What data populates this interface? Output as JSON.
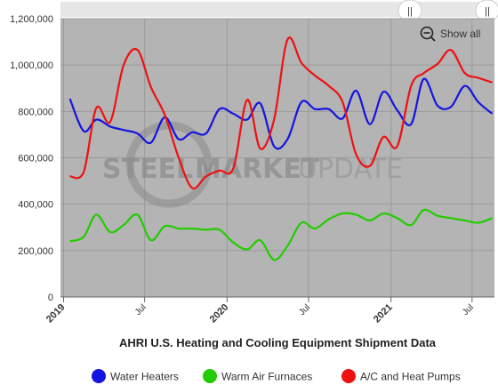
{
  "chart_data": {
    "type": "line",
    "title": "AHRI U.S. Heating and Cooling Equipment Shipment Data",
    "xlabel": "",
    "ylabel": "",
    "ylim": [
      0,
      1200000
    ],
    "yticks": [
      0,
      200000,
      400000,
      600000,
      800000,
      1000000,
      1200000
    ],
    "ytick_labels": [
      "0",
      "200,000",
      "400,000",
      "600,000",
      "800,000",
      "1,000,000",
      "1,200,000"
    ],
    "xlim": [
      "2018-12-25",
      "2021-08-20"
    ],
    "xticks": [
      {
        "date": "2019-01-01",
        "label": "2019",
        "major": true
      },
      {
        "date": "2019-07-01",
        "label": "Jul",
        "major": false
      },
      {
        "date": "2020-01-01",
        "label": "2020",
        "major": true
      },
      {
        "date": "2020-07-01",
        "label": "Jul",
        "major": false
      },
      {
        "date": "2021-01-01",
        "label": "2021",
        "major": true
      },
      {
        "date": "2021-07-01",
        "label": "Jul",
        "major": false
      }
    ],
    "grid": true,
    "legend": "bottom",
    "x": [
      "2019-01",
      "2019-02",
      "2019-03",
      "2019-04",
      "2019-05",
      "2019-06",
      "2019-07",
      "2019-08",
      "2019-09",
      "2019-10",
      "2019-11",
      "2019-12",
      "2020-01",
      "2020-02",
      "2020-03",
      "2020-04",
      "2020-05",
      "2020-06",
      "2020-07",
      "2020-08",
      "2020-09",
      "2020-10",
      "2020-11",
      "2020-12",
      "2021-01",
      "2021-02",
      "2021-03",
      "2021-04",
      "2021-05",
      "2021-06",
      "2021-07",
      "2021-08"
    ],
    "series": [
      {
        "name": "Water Heaters",
        "color": "#1515e0",
        "values": [
          855000,
          715000,
          765000,
          735000,
          720000,
          705000,
          665000,
          775000,
          680000,
          710000,
          705000,
          810000,
          790000,
          765000,
          835000,
          650000,
          680000,
          840000,
          810000,
          810000,
          770000,
          890000,
          745000,
          885000,
          805000,
          745000,
          940000,
          825000,
          820000,
          910000,
          840000,
          790000
        ]
      },
      {
        "name": "Warm Air Furnaces",
        "color": "#22cc00",
        "values": [
          240000,
          260000,
          355000,
          280000,
          310000,
          355000,
          245000,
          305000,
          295000,
          295000,
          290000,
          290000,
          235000,
          205000,
          245000,
          160000,
          220000,
          320000,
          295000,
          335000,
          360000,
          355000,
          330000,
          360000,
          340000,
          310000,
          375000,
          350000,
          340000,
          330000,
          320000,
          340000
        ]
      },
      {
        "name": "A/C and Heat Pumps",
        "color": "#ee1111",
        "values": [
          520000,
          540000,
          815000,
          755000,
          1000000,
          1065000,
          905000,
          785000,
          600000,
          470000,
          520000,
          545000,
          555000,
          850000,
          640000,
          765000,
          1110000,
          1010000,
          955000,
          910000,
          840000,
          615000,
          565000,
          690000,
          650000,
          910000,
          965000,
          1005000,
          1065000,
          965000,
          945000,
          925000
        ]
      }
    ]
  },
  "controls": {
    "show_all_label": "Show all"
  },
  "watermark": {
    "word1": "STEEL",
    "word2": "MARKET",
    "word3": "UPDATE"
  },
  "colors": {
    "plot_background": "#b4b4b4",
    "gridline": "#9a9a9a",
    "navigator": "#e6e6e6"
  },
  "icons": {
    "show_all": "zoom-out-icon"
  }
}
